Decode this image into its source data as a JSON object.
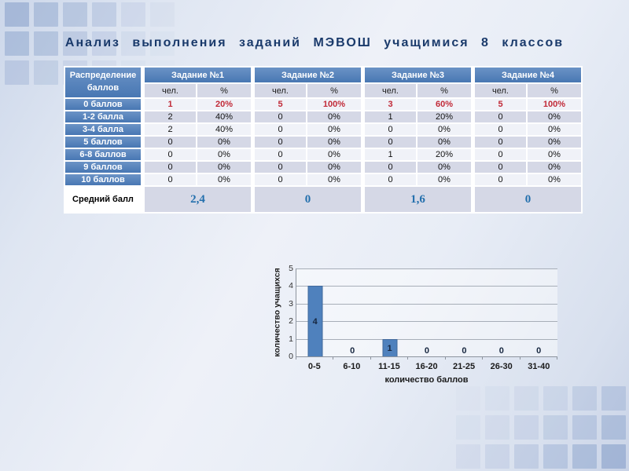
{
  "slide": {
    "title": "Анализ выполнения заданий МЭВОШ учащимися 8 классов"
  },
  "table": {
    "corner_header": "Распределение баллов",
    "group_headers": [
      "Задание №1",
      "Задание №2",
      "Задание №3",
      "Задание №4"
    ],
    "sub_headers": [
      "чел.",
      "%"
    ],
    "rows": [
      {
        "label": "0 баллов",
        "values": [
          "1",
          "20%",
          "5",
          "100%",
          "3",
          "60%",
          "5",
          "100%"
        ],
        "highlight": true
      },
      {
        "label": "1-2 балла",
        "values": [
          "2",
          "40%",
          "0",
          "0%",
          "1",
          "20%",
          "0",
          "0%"
        ]
      },
      {
        "label": "3-4 балла",
        "values": [
          "2",
          "40%",
          "0",
          "0%",
          "0",
          "0%",
          "0",
          "0%"
        ]
      },
      {
        "label": "5 баллов",
        "values": [
          "0",
          "0%",
          "0",
          "0%",
          "0",
          "0%",
          "0",
          "0%"
        ]
      },
      {
        "label": "6-8 баллов",
        "values": [
          "0",
          "0%",
          "0",
          "0%",
          "1",
          "20%",
          "0",
          "0%"
        ]
      },
      {
        "label": "9 баллов",
        "values": [
          "0",
          "0%",
          "0",
          "0%",
          "0",
          "0%",
          "0",
          "0%"
        ]
      },
      {
        "label": "10 баллов",
        "values": [
          "0",
          "0%",
          "0",
          "0%",
          "0",
          "0%",
          "0",
          "0%"
        ]
      }
    ],
    "summary": {
      "label": "Средний балл",
      "values": [
        "2,4",
        "0",
        "1,6",
        "0"
      ]
    }
  },
  "chart_data": {
    "type": "bar",
    "categories": [
      "0-5",
      "6-10",
      "11-15",
      "16-20",
      "21-25",
      "26-30",
      "31-40"
    ],
    "values": [
      4,
      0,
      1,
      0,
      0,
      0,
      0
    ],
    "title": "",
    "xlabel": "количество баллов",
    "ylabel": "количество учащихся",
    "ylim": [
      0,
      5
    ],
    "yticks": [
      0,
      1,
      2,
      3,
      4,
      5
    ],
    "grid": true,
    "data_labels": true,
    "legend": "none",
    "bar_color": "#4f81bd"
  },
  "colors": {
    "header_blue": "#4d7fbc",
    "row_light": "#f0f2f8",
    "row_dark": "#d5d8e6",
    "highlight_red": "#c12a38",
    "summary_blue": "#2470ad",
    "title_navy": "#1a3a6b",
    "bar_blue": "#4f81bd",
    "background": "#e8edf6"
  }
}
